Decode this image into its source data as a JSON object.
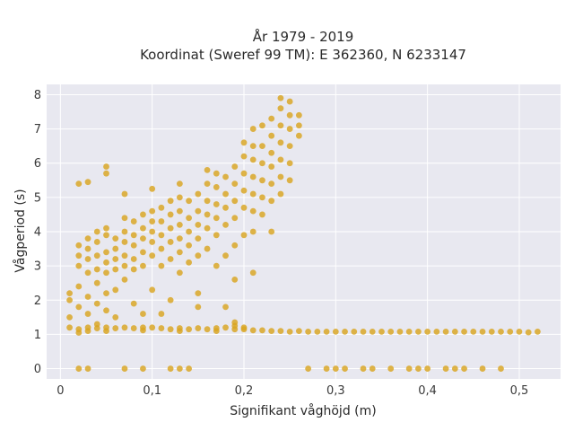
{
  "chart_data": {
    "type": "scatter",
    "title": "År 1979 - 2019",
    "subtitle": "Koordinat (Sweref 99 TM): E 362360, N 6233147",
    "xlabel": "Signifikant våghöjd (m)",
    "ylabel": "Vågperiod (s)",
    "xlim": [
      -0.015,
      0.545
    ],
    "ylim": [
      -0.3,
      8.3
    ],
    "x_ticks": [
      0,
      0.1,
      0.2,
      0.3,
      0.4,
      0.5
    ],
    "x_tick_labels": [
      "0",
      "0,1",
      "0,2",
      "0,3",
      "0,4",
      "0,5"
    ],
    "y_ticks": [
      0,
      1,
      2,
      3,
      4,
      5,
      6,
      7,
      8
    ],
    "y_tick_labels": [
      "0",
      "1",
      "2",
      "3",
      "4",
      "5",
      "6",
      "7",
      "8"
    ],
    "grid": true,
    "legend": "none",
    "colors": {
      "marker": "#d9a520",
      "plot_background": "#e8e8f0",
      "grid": "#ffffff"
    },
    "series": [
      {
        "values": [
          [
            0.02,
            0
          ],
          [
            0.03,
            0
          ],
          [
            0.07,
            0
          ],
          [
            0.09,
            0
          ],
          [
            0.12,
            0
          ],
          [
            0.13,
            0
          ],
          [
            0.14,
            0
          ],
          [
            0.27,
            0
          ],
          [
            0.29,
            0
          ],
          [
            0.3,
            0
          ],
          [
            0.31,
            0
          ],
          [
            0.33,
            0
          ],
          [
            0.34,
            0
          ],
          [
            0.36,
            0
          ],
          [
            0.38,
            0
          ],
          [
            0.39,
            0
          ],
          [
            0.4,
            0
          ],
          [
            0.42,
            0
          ],
          [
            0.43,
            0
          ],
          [
            0.44,
            0
          ],
          [
            0.46,
            0
          ],
          [
            0.48,
            0
          ],
          [
            0.01,
            1.2
          ],
          [
            0.02,
            1.15
          ],
          [
            0.03,
            1.2
          ],
          [
            0.04,
            1.18
          ],
          [
            0.05,
            1.2
          ],
          [
            0.06,
            1.18
          ],
          [
            0.07,
            1.2
          ],
          [
            0.08,
            1.18
          ],
          [
            0.09,
            1.2
          ],
          [
            0.1,
            1.2
          ],
          [
            0.11,
            1.18
          ],
          [
            0.12,
            1.15
          ],
          [
            0.13,
            1.18
          ],
          [
            0.14,
            1.15
          ],
          [
            0.15,
            1.18
          ],
          [
            0.16,
            1.15
          ],
          [
            0.17,
            1.18
          ],
          [
            0.18,
            1.2
          ],
          [
            0.19,
            1.15
          ],
          [
            0.2,
            1.15
          ],
          [
            0.21,
            1.12
          ],
          [
            0.22,
            1.12
          ],
          [
            0.23,
            1.1
          ],
          [
            0.24,
            1.1
          ],
          [
            0.25,
            1.08
          ],
          [
            0.26,
            1.1
          ],
          [
            0.27,
            1.08
          ],
          [
            0.28,
            1.08
          ],
          [
            0.29,
            1.08
          ],
          [
            0.3,
            1.08
          ],
          [
            0.31,
            1.08
          ],
          [
            0.32,
            1.08
          ],
          [
            0.33,
            1.08
          ],
          [
            0.34,
            1.08
          ],
          [
            0.35,
            1.08
          ],
          [
            0.36,
            1.08
          ],
          [
            0.37,
            1.08
          ],
          [
            0.38,
            1.08
          ],
          [
            0.39,
            1.08
          ],
          [
            0.4,
            1.08
          ],
          [
            0.41,
            1.08
          ],
          [
            0.42,
            1.08
          ],
          [
            0.43,
            1.08
          ],
          [
            0.44,
            1.08
          ],
          [
            0.45,
            1.08
          ],
          [
            0.46,
            1.08
          ],
          [
            0.47,
            1.08
          ],
          [
            0.48,
            1.08
          ],
          [
            0.49,
            1.08
          ],
          [
            0.5,
            1.08
          ],
          [
            0.51,
            1.06
          ],
          [
            0.52,
            1.08
          ],
          [
            0.02,
            1.05
          ],
          [
            0.03,
            1.1
          ],
          [
            0.05,
            1.1
          ],
          [
            0.09,
            1.12
          ],
          [
            0.13,
            1.1
          ],
          [
            0.17,
            1.1
          ],
          [
            0.19,
            1.25
          ],
          [
            0.19,
            1.35
          ],
          [
            0.2,
            1.2
          ],
          [
            0.01,
            1.5
          ],
          [
            0.01,
            2.0
          ],
          [
            0.01,
            2.2
          ],
          [
            0.02,
            1.8
          ],
          [
            0.02,
            2.4
          ],
          [
            0.02,
            3.0
          ],
          [
            0.02,
            3.3
          ],
          [
            0.02,
            3.6
          ],
          [
            0.03,
            1.6
          ],
          [
            0.03,
            2.1
          ],
          [
            0.03,
            2.8
          ],
          [
            0.03,
            3.2
          ],
          [
            0.03,
            3.5
          ],
          [
            0.03,
            3.8
          ],
          [
            0.04,
            1.9
          ],
          [
            0.04,
            2.5
          ],
          [
            0.04,
            2.9
          ],
          [
            0.04,
            3.3
          ],
          [
            0.04,
            3.7
          ],
          [
            0.04,
            4.0
          ],
          [
            0.05,
            1.7
          ],
          [
            0.05,
            2.2
          ],
          [
            0.05,
            2.8
          ],
          [
            0.05,
            3.1
          ],
          [
            0.05,
            3.4
          ],
          [
            0.05,
            3.9
          ],
          [
            0.05,
            4.1
          ],
          [
            0.06,
            2.3
          ],
          [
            0.06,
            2.9
          ],
          [
            0.06,
            3.2
          ],
          [
            0.06,
            3.5
          ],
          [
            0.06,
            3.8
          ],
          [
            0.07,
            2.6
          ],
          [
            0.07,
            3.0
          ],
          [
            0.07,
            3.3
          ],
          [
            0.07,
            3.7
          ],
          [
            0.07,
            4.0
          ],
          [
            0.07,
            4.4
          ],
          [
            0.08,
            2.9
          ],
          [
            0.08,
            3.2
          ],
          [
            0.08,
            3.6
          ],
          [
            0.08,
            3.9
          ],
          [
            0.08,
            4.3
          ],
          [
            0.09,
            3.0
          ],
          [
            0.09,
            3.4
          ],
          [
            0.09,
            3.8
          ],
          [
            0.09,
            4.1
          ],
          [
            0.09,
            4.5
          ],
          [
            0.1,
            2.3
          ],
          [
            0.1,
            3.3
          ],
          [
            0.1,
            3.7
          ],
          [
            0.1,
            4.0
          ],
          [
            0.1,
            4.3
          ],
          [
            0.1,
            4.6
          ],
          [
            0.11,
            3.0
          ],
          [
            0.11,
            3.5
          ],
          [
            0.11,
            3.9
          ],
          [
            0.11,
            4.3
          ],
          [
            0.11,
            4.7
          ],
          [
            0.12,
            3.2
          ],
          [
            0.12,
            3.7
          ],
          [
            0.12,
            4.1
          ],
          [
            0.12,
            4.5
          ],
          [
            0.12,
            4.9
          ],
          [
            0.13,
            2.8
          ],
          [
            0.13,
            3.4
          ],
          [
            0.13,
            3.8
          ],
          [
            0.13,
            4.2
          ],
          [
            0.13,
            4.6
          ],
          [
            0.13,
            5.0
          ],
          [
            0.14,
            3.1
          ],
          [
            0.14,
            3.6
          ],
          [
            0.14,
            4.0
          ],
          [
            0.14,
            4.4
          ],
          [
            0.14,
            4.9
          ],
          [
            0.15,
            3.3
          ],
          [
            0.15,
            3.8
          ],
          [
            0.15,
            4.2
          ],
          [
            0.15,
            4.6
          ],
          [
            0.15,
            5.1
          ],
          [
            0.16,
            3.5
          ],
          [
            0.16,
            4.1
          ],
          [
            0.16,
            4.5
          ],
          [
            0.16,
            4.9
          ],
          [
            0.16,
            5.4
          ],
          [
            0.17,
            3.0
          ],
          [
            0.17,
            3.9
          ],
          [
            0.17,
            4.4
          ],
          [
            0.17,
            4.8
          ],
          [
            0.17,
            5.3
          ],
          [
            0.17,
            5.7
          ],
          [
            0.18,
            3.3
          ],
          [
            0.18,
            4.2
          ],
          [
            0.18,
            4.7
          ],
          [
            0.18,
            5.1
          ],
          [
            0.18,
            5.6
          ],
          [
            0.19,
            3.6
          ],
          [
            0.19,
            4.4
          ],
          [
            0.19,
            4.9
          ],
          [
            0.19,
            5.4
          ],
          [
            0.19,
            5.9
          ],
          [
            0.2,
            3.9
          ],
          [
            0.2,
            4.7
          ],
          [
            0.2,
            5.2
          ],
          [
            0.2,
            5.7
          ],
          [
            0.2,
            6.2
          ],
          [
            0.2,
            6.6
          ],
          [
            0.21,
            4.0
          ],
          [
            0.21,
            4.6
          ],
          [
            0.21,
            5.1
          ],
          [
            0.21,
            5.6
          ],
          [
            0.21,
            6.1
          ],
          [
            0.21,
            6.5
          ],
          [
            0.21,
            7.0
          ],
          [
            0.22,
            4.5
          ],
          [
            0.22,
            5.0
          ],
          [
            0.22,
            5.5
          ],
          [
            0.22,
            6.0
          ],
          [
            0.22,
            6.5
          ],
          [
            0.22,
            7.1
          ],
          [
            0.23,
            4.9
          ],
          [
            0.23,
            5.4
          ],
          [
            0.23,
            5.9
          ],
          [
            0.23,
            6.3
          ],
          [
            0.23,
            6.8
          ],
          [
            0.23,
            7.3
          ],
          [
            0.24,
            5.1
          ],
          [
            0.24,
            5.6
          ],
          [
            0.24,
            6.1
          ],
          [
            0.24,
            6.6
          ],
          [
            0.24,
            7.1
          ],
          [
            0.24,
            7.6
          ],
          [
            0.24,
            7.9
          ],
          [
            0.25,
            5.5
          ],
          [
            0.25,
            6.0
          ],
          [
            0.25,
            6.5
          ],
          [
            0.25,
            7.0
          ],
          [
            0.25,
            7.4
          ],
          [
            0.25,
            7.8
          ],
          [
            0.26,
            6.8
          ],
          [
            0.26,
            7.1
          ],
          [
            0.26,
            7.4
          ],
          [
            0.02,
            5.4
          ],
          [
            0.03,
            5.45
          ],
          [
            0.05,
            5.7
          ],
          [
            0.05,
            5.9
          ],
          [
            0.07,
            5.1
          ],
          [
            0.1,
            5.25
          ],
          [
            0.13,
            5.4
          ],
          [
            0.16,
            5.8
          ],
          [
            0.09,
            1.6
          ],
          [
            0.11,
            1.6
          ],
          [
            0.12,
            2.0
          ],
          [
            0.15,
            2.2
          ],
          [
            0.15,
            1.8
          ],
          [
            0.18,
            1.8
          ],
          [
            0.19,
            2.6
          ],
          [
            0.23,
            4.0
          ],
          [
            0.21,
            2.8
          ],
          [
            0.04,
            1.3
          ],
          [
            0.06,
            1.5
          ],
          [
            0.08,
            1.9
          ]
        ]
      }
    ]
  }
}
